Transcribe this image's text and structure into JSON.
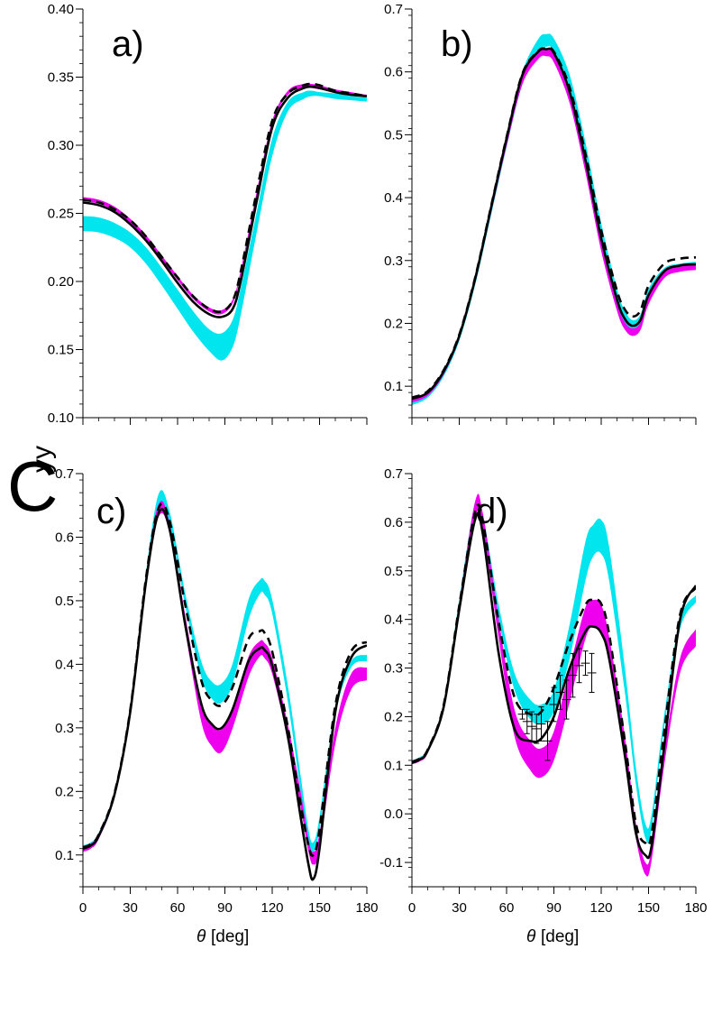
{
  "figure": {
    "ylabel_main": "C",
    "ylabel_sub": "yy",
    "xlabel_symbol": "θ",
    "xlabel_unit": "[deg]"
  },
  "colors": {
    "cyan_band": "#00e5ee",
    "magenta_band": "#ee00ee",
    "solid_line": "#000000",
    "dashed_line": "#000000"
  },
  "chart_data": [
    {
      "type": "line",
      "panel_label": "a)",
      "xlabel": "",
      "ylabel": "",
      "xlim": [
        0,
        180
      ],
      "ylim": [
        0.1,
        0.4
      ],
      "xticks": [
        0,
        30,
        60,
        90,
        120,
        150,
        180
      ],
      "yticks": [
        0.1,
        0.15,
        0.2,
        0.25,
        0.3,
        0.35,
        0.4
      ],
      "ytick_labels": [
        "0.10",
        "0.15",
        "0.20",
        "0.25",
        "0.30",
        "0.35",
        "0.40"
      ],
      "x": [
        0,
        10,
        20,
        30,
        40,
        50,
        60,
        70,
        80,
        88,
        95,
        100,
        110,
        120,
        130,
        140,
        145,
        150,
        160,
        170,
        180
      ],
      "bands": [
        {
          "color": "cyan",
          "lower": [
            0.237,
            0.236,
            0.232,
            0.225,
            0.213,
            0.197,
            0.18,
            0.163,
            0.149,
            0.142,
            0.152,
            0.175,
            0.235,
            0.292,
            0.325,
            0.334,
            0.336,
            0.336,
            0.334,
            0.333,
            0.332
          ],
          "upper": [
            0.248,
            0.247,
            0.243,
            0.236,
            0.225,
            0.21,
            0.194,
            0.178,
            0.165,
            0.162,
            0.172,
            0.195,
            0.25,
            0.305,
            0.332,
            0.339,
            0.34,
            0.339,
            0.338,
            0.336,
            0.335
          ]
        },
        {
          "color": "magenta",
          "lower": [
            0.259,
            0.257,
            0.252,
            0.243,
            0.231,
            0.216,
            0.201,
            0.187,
            0.178,
            0.176,
            0.184,
            0.205,
            0.262,
            0.315,
            0.337,
            0.342,
            0.342,
            0.341,
            0.339,
            0.337,
            0.336
          ],
          "upper": [
            0.262,
            0.26,
            0.255,
            0.246,
            0.234,
            0.219,
            0.204,
            0.19,
            0.181,
            0.179,
            0.187,
            0.208,
            0.265,
            0.318,
            0.34,
            0.345,
            0.345,
            0.344,
            0.341,
            0.339,
            0.337
          ]
        }
      ],
      "series": [
        {
          "style": "solid",
          "values": [
            0.258,
            0.256,
            0.251,
            0.242,
            0.23,
            0.215,
            0.199,
            0.185,
            0.176,
            0.174,
            0.18,
            0.2,
            0.258,
            0.313,
            0.335,
            0.342,
            0.343,
            0.342,
            0.339,
            0.337,
            0.336
          ]
        },
        {
          "style": "dashed",
          "values": [
            0.26,
            0.258,
            0.253,
            0.245,
            0.233,
            0.218,
            0.203,
            0.189,
            0.18,
            0.178,
            0.186,
            0.207,
            0.265,
            0.318,
            0.338,
            0.344,
            0.345,
            0.344,
            0.34,
            0.338,
            0.336
          ]
        }
      ]
    },
    {
      "type": "line",
      "panel_label": "b)",
      "xlabel": "",
      "ylabel": "",
      "xlim": [
        0,
        180
      ],
      "ylim": [
        0.05,
        0.7
      ],
      "xticks": [
        0,
        30,
        60,
        90,
        120,
        150,
        180
      ],
      "yticks": [
        0.1,
        0.2,
        0.3,
        0.4,
        0.5,
        0.6,
        0.7
      ],
      "ytick_labels": [
        "0.1",
        "0.2",
        "0.3",
        "0.4",
        "0.5",
        "0.6",
        "0.7"
      ],
      "x": [
        0,
        10,
        20,
        30,
        40,
        50,
        60,
        70,
        80,
        85,
        90,
        100,
        110,
        120,
        130,
        135,
        140,
        145,
        150,
        160,
        170,
        180
      ],
      "bands": [
        {
          "color": "cyan",
          "lower": [
            0.07,
            0.082,
            0.115,
            0.172,
            0.26,
            0.37,
            0.48,
            0.58,
            0.632,
            0.64,
            0.633,
            0.57,
            0.46,
            0.33,
            0.23,
            0.2,
            0.188,
            0.2,
            0.24,
            0.275,
            0.285,
            0.288
          ],
          "upper": [
            0.08,
            0.091,
            0.125,
            0.182,
            0.272,
            0.385,
            0.498,
            0.6,
            0.652,
            0.66,
            0.653,
            0.595,
            0.488,
            0.36,
            0.255,
            0.22,
            0.205,
            0.215,
            0.255,
            0.288,
            0.295,
            0.298
          ]
        },
        {
          "color": "magenta",
          "lower": [
            0.074,
            0.085,
            0.118,
            0.175,
            0.263,
            0.373,
            0.482,
            0.58,
            0.62,
            0.625,
            0.615,
            0.55,
            0.44,
            0.315,
            0.22,
            0.19,
            0.18,
            0.19,
            0.23,
            0.272,
            0.282,
            0.285
          ],
          "upper": [
            0.081,
            0.092,
            0.125,
            0.182,
            0.27,
            0.381,
            0.492,
            0.592,
            0.632,
            0.636,
            0.627,
            0.562,
            0.452,
            0.327,
            0.232,
            0.202,
            0.192,
            0.202,
            0.242,
            0.284,
            0.292,
            0.294
          ]
        }
      ],
      "series": [
        {
          "style": "solid",
          "values": [
            0.08,
            0.09,
            0.123,
            0.18,
            0.27,
            0.382,
            0.494,
            0.595,
            0.632,
            0.636,
            0.63,
            0.568,
            0.46,
            0.335,
            0.238,
            0.207,
            0.196,
            0.206,
            0.245,
            0.283,
            0.292,
            0.294
          ]
        },
        {
          "style": "dashed",
          "values": [
            0.082,
            0.092,
            0.125,
            0.182,
            0.272,
            0.384,
            0.496,
            0.597,
            0.633,
            0.637,
            0.632,
            0.575,
            0.47,
            0.348,
            0.252,
            0.222,
            0.211,
            0.221,
            0.26,
            0.295,
            0.303,
            0.305
          ]
        }
      ]
    },
    {
      "type": "line",
      "panel_label": "c)",
      "xlabel": "θ [deg]",
      "ylabel": "",
      "xlim": [
        0,
        180
      ],
      "ylim": [
        0.05,
        0.7
      ],
      "xticks": [
        0,
        30,
        60,
        90,
        120,
        150,
        180
      ],
      "yticks": [
        0.1,
        0.2,
        0.3,
        0.4,
        0.5,
        0.6,
        0.7
      ],
      "ytick_labels": [
        "0.1",
        "0.2",
        "0.3",
        "0.4",
        "0.5",
        "0.6",
        "0.7"
      ],
      "x": [
        0,
        5,
        10,
        20,
        30,
        40,
        48,
        55,
        65,
        75,
        82,
        88,
        95,
        105,
        112,
        115,
        120,
        130,
        138,
        143,
        146,
        150,
        160,
        170,
        180
      ],
      "bands": [
        {
          "color": "cyan",
          "lower": [
            0.105,
            0.11,
            0.125,
            0.19,
            0.32,
            0.53,
            0.65,
            0.62,
            0.49,
            0.38,
            0.345,
            0.34,
            0.37,
            0.47,
            0.51,
            0.51,
            0.48,
            0.34,
            0.2,
            0.12,
            0.105,
            0.14,
            0.32,
            0.395,
            0.405
          ],
          "upper": [
            0.115,
            0.12,
            0.135,
            0.2,
            0.333,
            0.545,
            0.668,
            0.64,
            0.51,
            0.405,
            0.372,
            0.37,
            0.402,
            0.502,
            0.532,
            0.532,
            0.502,
            0.365,
            0.225,
            0.14,
            0.12,
            0.16,
            0.335,
            0.405,
            0.415
          ]
        },
        {
          "color": "magenta",
          "lower": [
            0.105,
            0.11,
            0.125,
            0.19,
            0.32,
            0.525,
            0.632,
            0.605,
            0.45,
            0.31,
            0.27,
            0.262,
            0.3,
            0.38,
            0.412,
            0.41,
            0.385,
            0.28,
            0.175,
            0.105,
            0.085,
            0.11,
            0.275,
            0.36,
            0.375
          ],
          "upper": [
            0.113,
            0.118,
            0.133,
            0.198,
            0.33,
            0.54,
            0.652,
            0.622,
            0.475,
            0.342,
            0.305,
            0.298,
            0.332,
            0.412,
            0.436,
            0.434,
            0.41,
            0.305,
            0.2,
            0.125,
            0.105,
            0.135,
            0.3,
            0.385,
            0.395
          ]
        }
      ],
      "series": [
        {
          "style": "solid",
          "values": [
            0.11,
            0.115,
            0.13,
            0.195,
            0.325,
            0.53,
            0.638,
            0.612,
            0.46,
            0.338,
            0.305,
            0.3,
            0.33,
            0.405,
            0.425,
            0.423,
            0.398,
            0.285,
            0.16,
            0.085,
            0.062,
            0.11,
            0.325,
            0.41,
            0.43
          ]
        },
        {
          "style": "dashed",
          "values": [
            0.112,
            0.117,
            0.132,
            0.197,
            0.328,
            0.536,
            0.646,
            0.625,
            0.492,
            0.375,
            0.342,
            0.336,
            0.365,
            0.44,
            0.452,
            0.45,
            0.42,
            0.3,
            0.18,
            0.115,
            0.1,
            0.14,
            0.335,
            0.42,
            0.435
          ]
        }
      ]
    },
    {
      "type": "line",
      "panel_label": "d)",
      "xlabel": "θ [deg]",
      "ylabel": "",
      "xlim": [
        0,
        180
      ],
      "ylim": [
        -0.15,
        0.7
      ],
      "xticks": [
        0,
        30,
        60,
        90,
        120,
        150,
        180
      ],
      "yticks": [
        -0.1,
        0.0,
        0.1,
        0.2,
        0.3,
        0.4,
        0.5,
        0.6,
        0.7
      ],
      "ytick_labels": [
        "-0.1",
        "0.0",
        "0.1",
        "0.2",
        "0.3",
        "0.4",
        "0.5",
        "0.6",
        "0.7"
      ],
      "x": [
        0,
        5,
        10,
        20,
        30,
        40,
        45,
        55,
        65,
        75,
        82,
        90,
        100,
        110,
        115,
        120,
        125,
        135,
        142,
        148,
        152,
        160,
        170,
        180
      ],
      "bands": [
        {
          "color": "cyan",
          "lower": [
            0.105,
            0.112,
            0.13,
            0.22,
            0.43,
            0.615,
            0.59,
            0.4,
            0.255,
            0.195,
            0.185,
            0.21,
            0.32,
            0.48,
            0.53,
            0.535,
            0.48,
            0.25,
            0.06,
            -0.05,
            -0.03,
            0.18,
            0.38,
            0.435
          ],
          "upper": [
            0.11,
            0.117,
            0.135,
            0.228,
            0.442,
            0.64,
            0.615,
            0.43,
            0.29,
            0.235,
            0.225,
            0.255,
            0.39,
            0.56,
            0.595,
            0.605,
            0.55,
            0.3,
            0.095,
            -0.02,
            0.0,
            0.205,
            0.4,
            0.45
          ]
        },
        {
          "color": "magenta",
          "lower": [
            0.102,
            0.108,
            0.125,
            0.215,
            0.42,
            0.61,
            0.585,
            0.36,
            0.16,
            0.09,
            0.075,
            0.11,
            0.23,
            0.36,
            0.385,
            0.37,
            0.31,
            0.12,
            -0.05,
            -0.125,
            -0.095,
            0.1,
            0.29,
            0.345
          ],
          "upper": [
            0.108,
            0.114,
            0.132,
            0.225,
            0.435,
            0.642,
            0.618,
            0.4,
            0.215,
            0.15,
            0.135,
            0.17,
            0.3,
            0.425,
            0.44,
            0.43,
            0.365,
            0.16,
            -0.02,
            -0.1,
            -0.07,
            0.13,
            0.32,
            0.38
          ]
        }
      ],
      "series": [
        {
          "style": "solid",
          "values": [
            0.105,
            0.112,
            0.13,
            0.218,
            0.42,
            0.605,
            0.575,
            0.33,
            0.175,
            0.15,
            0.155,
            0.2,
            0.3,
            0.375,
            0.385,
            0.372,
            0.32,
            0.12,
            -0.04,
            -0.085,
            -0.065,
            0.14,
            0.4,
            0.47
          ]
        },
        {
          "style": "dashed",
          "values": [
            0.107,
            0.114,
            0.132,
            0.222,
            0.428,
            0.62,
            0.6,
            0.395,
            0.24,
            0.205,
            0.21,
            0.26,
            0.355,
            0.43,
            0.44,
            0.432,
            0.37,
            0.15,
            -0.02,
            -0.06,
            -0.04,
            0.17,
            0.41,
            0.465
          ]
        }
      ],
      "error_points": [
        {
          "x": 70,
          "y": 0.205,
          "err": 0.01
        },
        {
          "x": 73,
          "y": 0.19,
          "err": 0.025
        },
        {
          "x": 76,
          "y": 0.18,
          "err": 0.03
        },
        {
          "x": 79,
          "y": 0.175,
          "err": 0.03
        },
        {
          "x": 82,
          "y": 0.185,
          "err": 0.035
        },
        {
          "x": 86,
          "y": 0.15,
          "err": 0.04
        },
        {
          "x": 90,
          "y": 0.225,
          "err": 0.035
        },
        {
          "x": 94,
          "y": 0.25,
          "err": 0.035
        },
        {
          "x": 98,
          "y": 0.235,
          "err": 0.04
        },
        {
          "x": 102,
          "y": 0.285,
          "err": 0.045
        },
        {
          "x": 106,
          "y": 0.305,
          "err": 0.035
        },
        {
          "x": 110,
          "y": 0.31,
          "err": 0.025
        },
        {
          "x": 114,
          "y": 0.29,
          "err": 0.04
        }
      ]
    }
  ]
}
